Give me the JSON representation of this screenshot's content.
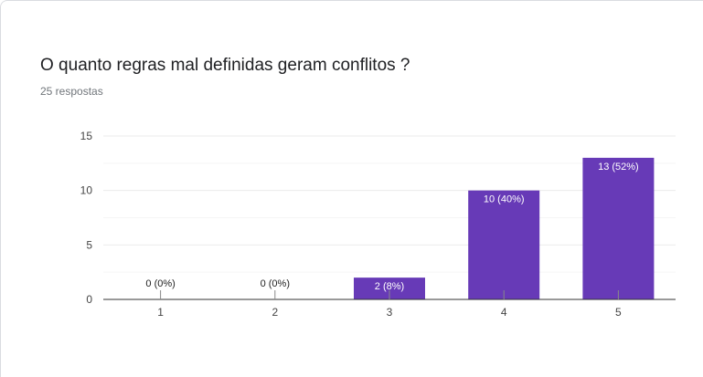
{
  "question": {
    "title": "O quanto regras mal definidas geram conflitos ?",
    "responses": "25 respostas"
  },
  "colors": {
    "bar": "#673ab7",
    "grid": "#ebebeb",
    "axis": "#333333",
    "label_inside": "#ffffff",
    "label_outside": "#222222"
  },
  "chart_data": {
    "type": "bar",
    "categories": [
      "1",
      "2",
      "3",
      "4",
      "5"
    ],
    "values": [
      0,
      0,
      2,
      10,
      13
    ],
    "data_labels": [
      "0 (0%)",
      "0 (0%)",
      "2 (8%)",
      "10 (40%)",
      "13 (52%)"
    ],
    "y_ticks": [
      0,
      5,
      10,
      15
    ],
    "ylim": [
      0,
      15
    ],
    "grid": true,
    "legend": "none"
  }
}
